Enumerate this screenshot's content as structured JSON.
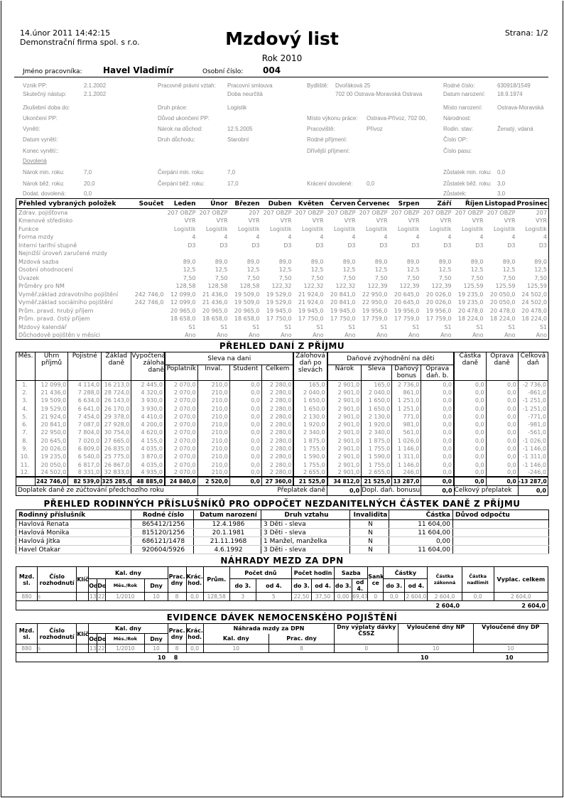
{
  "header": {
    "datetime": "14.únor 2011  14:42:15",
    "company": "Demonstrační firma spol. s r.o.",
    "title": "Mzdový list",
    "page": "Strana: 1/2",
    "year": "Rok 2010",
    "employee_label": "Jméno pracovníka:",
    "employee_name": "Havel Vladimír",
    "number_label": "Osobní číslo:",
    "number": "004"
  },
  "info": [
    [
      [
        "Vznik PP:",
        "2.1.2002"
      ],
      [
        "Pracovně právní vztah:",
        "Pracovní smlouva"
      ],
      [
        "Bydliště:",
        "Dvořáková 25"
      ],
      [
        "Rodné číslo:",
        "630918/1549"
      ]
    ],
    [
      [
        "Skutečný nástup:",
        "2.1.2002"
      ],
      [
        "",
        "Doba neurčitá"
      ],
      [
        "",
        "702 00 Ostrava-Moravská Ostrava"
      ],
      [
        "Datum narození:",
        "18.9.1974"
      ]
    ],
    [
      [
        "Zkušební doba do:",
        ""
      ],
      [
        "Druh práce:",
        "Logistik"
      ],
      [
        "",
        ""
      ],
      [
        "Místo narození:",
        "Ostrava-Moravská"
      ]
    ],
    [
      [
        "Ukončení PP:",
        ""
      ],
      [
        "Důvod ukončení PP:",
        ""
      ],
      [
        "Místo výkonu práce:",
        "Ostrava-Přívoz, 702 00,"
      ],
      [
        "Národnost:",
        ""
      ]
    ],
    [
      [
        "Vynětí:",
        ""
      ],
      [
        "Nárok na důchod:",
        "12.5.2005"
      ],
      [
        "Pracoviště:",
        "Přívoz"
      ],
      [
        "Rodin. stav:",
        "Ženatý, vdaná"
      ]
    ],
    [
      [
        "Datum vynětí:",
        ""
      ],
      [
        "Druh důchodu:",
        "Starobní"
      ],
      [
        "Rodné příjmení:",
        ""
      ],
      [
        "Číslo OP:",
        ""
      ]
    ],
    [
      [
        "Konec vynětí::",
        ""
      ],
      [
        "",
        ""
      ],
      [
        "Dřívější příjmení:",
        ""
      ],
      [
        "Číslo pasu:",
        ""
      ]
    ],
    [
      [
        "Dovolená",
        ""
      ],
      [
        "",
        ""
      ],
      [
        "",
        ""
      ],
      [
        "",
        ""
      ]
    ],
    [
      [
        "Nárok min. roku:",
        "7,0"
      ],
      [
        "Čerpání min. roku:",
        "7,0"
      ],
      [
        "",
        ""
      ],
      [
        "Zůstatek min. roku:",
        "0,0"
      ]
    ],
    [
      [
        "Nárok běž. roku:",
        "20,0"
      ],
      [
        "Čerpání běž. roku:",
        "17,0"
      ],
      [
        "Krácení dovolené:",
        "0,0"
      ],
      [
        "Zůstatek běž. roku:",
        "3,0"
      ]
    ],
    [
      [
        "Dodat. dovolená:",
        "0,0"
      ],
      [
        "",
        ""
      ],
      [
        "",
        ""
      ],
      [
        "Zůstatek:",
        "3,0"
      ]
    ]
  ],
  "overview": {
    "headers": [
      "Přehled vybraných  položek",
      "Součet",
      "Leden",
      "Únor",
      "Březen",
      "Duben",
      "Květen",
      "Červen",
      "Červenec",
      "Srpen",
      "Září",
      "Říjen",
      "Listopad",
      "Prosinec"
    ],
    "rows": [
      [
        "Zdrav. pojišťovna",
        "",
        "207 OBZP",
        "207 OBZP",
        "207",
        "207 OBZP",
        "207 OBZP",
        "207 OBZP",
        "207 OBZP",
        "207 OBZP",
        "207 OBZP",
        "207 OBZP",
        "207 OBZP",
        "207"
      ],
      [
        "Kmenové středisko",
        "",
        "VYR",
        "VYR",
        "VYR",
        "VYR",
        "VYR",
        "VYR",
        "VYR",
        "VYR",
        "VYR",
        "VYR",
        "VYR",
        "VYR"
      ],
      [
        "Funkce",
        "",
        "Logistik",
        "Logistik",
        "Logistik",
        "Logistik",
        "Logistik",
        "Logistik",
        "Logistik",
        "Logistik",
        "Logistik",
        "Logistik",
        "Logistik",
        "Logistik"
      ],
      [
        "Forma mzdy",
        "",
        "4",
        "4",
        "4",
        "4",
        "4",
        "4",
        "4",
        "4",
        "4",
        "4",
        "4",
        "4"
      ],
      [
        "Interní tarifní stupně",
        "",
        "D3",
        "D3",
        "D3",
        "D3",
        "D3",
        "D3",
        "D3",
        "D3",
        "D3",
        "D3",
        "D3",
        "D3"
      ],
      [
        "Nejnižší úroveň zaručené mzdy",
        "",
        "",
        "",
        "",
        "",
        "",
        "",
        "",
        "",
        "",
        "",
        "",
        ""
      ],
      [
        "Mzdová sazba",
        "",
        "89,0",
        "89,0",
        "89,0",
        "89,0",
        "89,0",
        "89,0",
        "89,0",
        "89,0",
        "89,0",
        "89,0",
        "89,0",
        "89,0"
      ],
      [
        "Osobní ohodnocení",
        "",
        "12,5",
        "12,5",
        "12,5",
        "12,5",
        "12,5",
        "12,5",
        "12,5",
        "12,5",
        "12,5",
        "12,5",
        "12,5",
        "12,5"
      ],
      [
        "Úvazek",
        "",
        "7,50",
        "7,50",
        "7,50",
        "7,50",
        "7,50",
        "7,50",
        "7,50",
        "7,50",
        "7,50",
        "7,50",
        "7,50",
        "7,50"
      ],
      [
        "Průměry pro NM",
        "",
        "128,58",
        "128,58",
        "128,58",
        "122,32",
        "122,32",
        "122,32",
        "122,39",
        "122,39",
        "122,39",
        "125,59",
        "125,59",
        "125,59"
      ],
      [
        "Vyměř.základ zdravotního pojištění",
        "242 746,0",
        "12 099,0",
        "21 436,0",
        "19 509,0",
        "19 529,0",
        "21 924,0",
        "20 841,0",
        "22 950,0",
        "20 645,0",
        "20 026,0",
        "19 235,0",
        "20 050,0",
        "24 502,0"
      ],
      [
        "Vyměř.základ sociálního pojištění",
        "242 746,0",
        "12 099,0",
        "21 436,0",
        "19 509,0",
        "19 529,0",
        "21 924,0",
        "20 841,0",
        "22 950,0",
        "20 645,0",
        "20 026,0",
        "19 235,0",
        "20 050,0",
        "24 502,0"
      ],
      [
        "Prům. pravd. hrubý příjem",
        "",
        "20 965,0",
        "20 965,0",
        "20 965,0",
        "19 945,0",
        "19 945,0",
        "19 945,0",
        "19 956,0",
        "19 956,0",
        "19 956,0",
        "20 478,0",
        "20 478,0",
        "20 478,0"
      ],
      [
        "Prům. pravd. čistý příjem",
        "",
        "18 658,0",
        "18 658,0",
        "18 658,0",
        "17 750,0",
        "17 750,0",
        "17 750,0",
        "17 759,0",
        "17 759,0",
        "17 759,0",
        "18 224,0",
        "18 224,0",
        "18 224,0"
      ],
      [
        "Mzdový kalendář",
        "",
        "S1",
        "S1",
        "S1",
        "S1",
        "S1",
        "S1",
        "S1",
        "S1",
        "S1",
        "S1",
        "S1",
        "S1"
      ],
      [
        "Důchodově pojištěn v měsíci",
        "",
        "Ano",
        "Ano",
        "Ano",
        "Ano",
        "Ano",
        "Ano",
        "Ano",
        "Ano",
        "Ano",
        "Ano",
        "Ano",
        "Ano"
      ]
    ]
  },
  "tax": {
    "title": "PŘEHLED DANÍ Z PŘÍJMU",
    "h": {
      "mes": "Měs.",
      "uhrn": "Úhrn příjmů",
      "pojistne": "Pojistné",
      "zaklad": "Základ daně",
      "vypoctena": "Vypočtená záloha daně",
      "sleva": "Sleva na dani",
      "poplatnik": "Poplatník",
      "inval": "Inval.",
      "student": "Student",
      "celkem": "Celkem",
      "zalohova": "Zálohová daň po slevách",
      "zvyhodneni": "Daňové zvýhodnění na děti",
      "narok": "Nárok",
      "sleva2": "Sleva",
      "bonus": "Daňový bonus",
      "oprava_b": "Oprava daň. b.",
      "castka": "Částka daně",
      "oprava": "Oprava daně",
      "celkova": "Celková daň"
    },
    "rows": [
      [
        "1.",
        "12 099,0",
        "4 114,0",
        "16 213,0",
        "2 445,0",
        "2 070,0",
        "210,0",
        "0,0",
        "2 280,0",
        "165,0",
        "2 901,0",
        "165,0",
        "2 736,0",
        "0,0",
        "0,0",
        "0,0",
        "-2 736,0"
      ],
      [
        "2.",
        "21 436,0",
        "7 288,0",
        "28 724,0",
        "4 320,0",
        "2 070,0",
        "210,0",
        "0,0",
        "2 280,0",
        "2 040,0",
        "2 901,0",
        "2 040,0",
        "861,0",
        "0,0",
        "0,0",
        "0,0",
        "-861,0"
      ],
      [
        "3.",
        "19 509,0",
        "6 634,0",
        "26 143,0",
        "3 930,0",
        "2 070,0",
        "210,0",
        "0,0",
        "2 280,0",
        "1 650,0",
        "2 901,0",
        "1 650,0",
        "1 251,0",
        "0,0",
        "0,0",
        "0,0",
        "-1 251,0"
      ],
      [
        "4.",
        "19 529,0",
        "6 641,0",
        "26 170,0",
        "3 930,0",
        "2 070,0",
        "210,0",
        "0,0",
        "2 280,0",
        "1 650,0",
        "2 901,0",
        "1 650,0",
        "1 251,0",
        "0,0",
        "0,0",
        "0,0",
        "-1 251,0"
      ],
      [
        "5.",
        "21 924,0",
        "7 454,0",
        "29 378,0",
        "4 410,0",
        "2 070,0",
        "210,0",
        "0,0",
        "2 280,0",
        "2 130,0",
        "2 901,0",
        "2 130,0",
        "771,0",
        "0,0",
        "0,0",
        "0,0",
        "-771,0"
      ],
      [
        "6.",
        "20 841,0",
        "7 087,0",
        "27 928,0",
        "4 200,0",
        "2 070,0",
        "210,0",
        "0,0",
        "2 280,0",
        "1 920,0",
        "2 901,0",
        "1 920,0",
        "981,0",
        "0,0",
        "0,0",
        "0,0",
        "-981,0"
      ],
      [
        "7.",
        "22 950,0",
        "7 804,0",
        "30 754,0",
        "4 620,0",
        "2 070,0",
        "210,0",
        "0,0",
        "2 280,0",
        "2 340,0",
        "2 901,0",
        "2 340,0",
        "561,0",
        "0,0",
        "0,0",
        "0,0",
        "-561,0"
      ],
      [
        "8.",
        "20 645,0",
        "7 020,0",
        "27 665,0",
        "4 155,0",
        "2 070,0",
        "210,0",
        "0,0",
        "2 280,0",
        "1 875,0",
        "2 901,0",
        "1 875,0",
        "1 026,0",
        "0,0",
        "0,0",
        "0,0",
        "-1 026,0"
      ],
      [
        "9.",
        "20 026,0",
        "6 809,0",
        "26 835,0",
        "4 035,0",
        "2 070,0",
        "210,0",
        "0,0",
        "2 280,0",
        "1 755,0",
        "2 901,0",
        "1 755,0",
        "1 146,0",
        "0,0",
        "0,0",
        "0,0",
        "-1 146,0"
      ],
      [
        "10.",
        "19 235,0",
        "6 540,0",
        "25 775,0",
        "3 870,0",
        "2 070,0",
        "210,0",
        "0,0",
        "2 280,0",
        "1 590,0",
        "2 901,0",
        "1 590,0",
        "1 311,0",
        "0,0",
        "0,0",
        "0,0",
        "-1 311,0"
      ],
      [
        "11.",
        "20 050,0",
        "6 817,0",
        "26 867,0",
        "4 035,0",
        "2 070,0",
        "210,0",
        "0,0",
        "2 280,0",
        "1 755,0",
        "2 901,0",
        "1 755,0",
        "1 146,0",
        "0,0",
        "0,0",
        "0,0",
        "-1 146,0"
      ],
      [
        "12.",
        "24 502,0",
        "8 331,0",
        "32 833,0",
        "4 935,0",
        "2 070,0",
        "210,0",
        "0,0",
        "2 280,0",
        "2 655,0",
        "2 901,0",
        "2 655,0",
        "246,0",
        "0,0",
        "0,0",
        "0,0",
        "-246,0"
      ]
    ],
    "total": [
      "",
      "242 746,0",
      "82 539,0",
      "325 285,0",
      "48 885,0",
      "24 840,0",
      "2 520,0",
      "0,0",
      "27 360,0",
      "21 525,0",
      "34 812,0",
      "21 525,0",
      "13 287,0",
      "0,0",
      "0,0",
      "0,0",
      "-13 287,0"
    ],
    "bottom": {
      "doplatek_label": "Doplatek daně ze zúčtování předchozího roku",
      "preplatek_label": "Přeplatek daně",
      "preplatek": "0,0",
      "bonus_label": "Dopl. daň. bonusu",
      "bonus": "0,0",
      "celkovy_label": "Celkový přeplatek",
      "celkovy": "0,0"
    }
  },
  "family": {
    "title": "PŘEHLED RODINNÝCH PŘÍSLUŠNÍKŮ PRO ODPOČET NEZDANITELNÝCH ČÁSTEK DANĚ Z PŘÍJMU",
    "headers": [
      "Rodinný příslušník",
      "Rodné číslo",
      "Datum narození",
      "Druh vztahu",
      "Invalidita",
      "Částka",
      "Důvod odpočtu"
    ],
    "rows": [
      [
        "Havlová Renata",
        "865412/1256",
        "12.4.1986",
        "3  Děti - sleva",
        "N",
        "11 604,00",
        ""
      ],
      [
        "Havlová Monika",
        "815120/1256",
        "20.1.1981",
        "3  Děti - sleva",
        "N",
        "11 604,00",
        ""
      ],
      [
        "Havlová Jitka",
        "686121/1478",
        "21.11.1968",
        "1  Manžel, manželka",
        "N",
        "0,00",
        ""
      ],
      [
        "Havel Otakar",
        "920604/5926",
        "4.6.1992",
        "3  Děti - sleva",
        "N",
        "11 604,00",
        ""
      ]
    ]
  },
  "dpn": {
    "title": "NÁHRADY MEZD ZA DPN",
    "h": {
      "mzd": "Mzd. sl.",
      "cislo": "Číslo rozhodnutí",
      "klic": "Klíč",
      "kal": "Kal. dny",
      "od": "Od",
      "do": "Do",
      "mesrok": "Měs./Rok",
      "dny": "Dny",
      "prac": "Prac. dny",
      "krac": "Krác. hod.",
      "prum": "Prům.",
      "pocet_dnu": "Počet dnů",
      "pocet_hodin": "Počet hodin",
      "sazba": "Sazba",
      "sank": "Sank ce",
      "castky": "Částky",
      "do3": "do 3.",
      "od4": "od 4.",
      "zakonna": "Částka zákonná",
      "nadlimit": "Částka nadlimit",
      "vyplac": "Vyplac. celkem"
    },
    "rows": [
      [
        "880",
        "s",
        "",
        "13",
        "22",
        "1/2010",
        "10",
        "8",
        "0,0",
        "128,58",
        "3",
        "5",
        "22,50",
        "37,50",
        "0,00",
        "69,43",
        "0",
        "0,0",
        "2 604,0",
        "2 604,0",
        "0,0",
        "2 604,0"
      ]
    ],
    "total": {
      "zakonna": "2 604,0",
      "vyplac": "2 604,0"
    }
  },
  "evidence": {
    "title": "EVIDENCE DÁVEK NEMOCENSKÉHO POJIŠTĚNÍ",
    "h": {
      "nahrada": "Náhrada mzdy za DPN",
      "kal_dny": "Kal. dny",
      "prac_dny": "Prac. dny",
      "vyplata": "Dny výplaty dávky ČSSZ",
      "np": "Vyloučené dny NP",
      "dp": "Vyloučené dny DP"
    },
    "rows": [
      [
        "880",
        "s",
        "",
        "13",
        "22",
        "1/2010",
        "10",
        "8",
        "0,0",
        "10",
        "8",
        "0",
        "10",
        "10"
      ]
    ],
    "total": {
      "dny": "10",
      "prac": "8",
      "np": "10",
      "dp": "10"
    }
  }
}
